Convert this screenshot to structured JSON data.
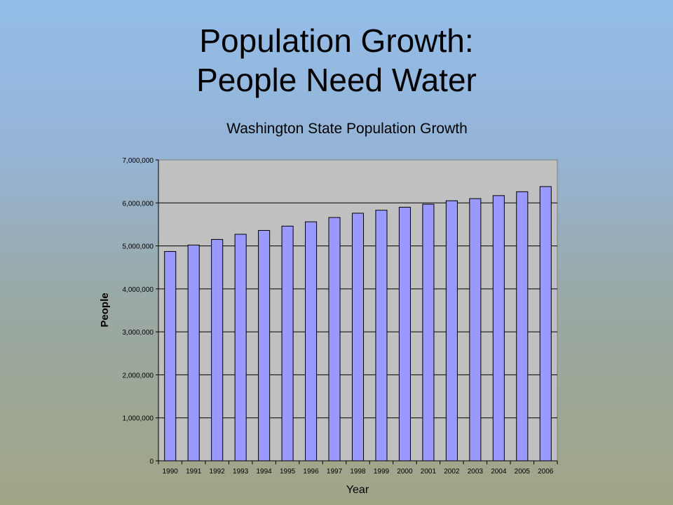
{
  "slide": {
    "title_line1": "Population Growth:",
    "title_line2": "People Need Water"
  },
  "colors": {
    "bar_fill": "#9999ff",
    "plot_background": "#c0c0c0"
  },
  "chart_data": {
    "type": "bar",
    "title": "Washington State Population Growth",
    "xlabel": "Year",
    "ylabel": "People",
    "categories": [
      "1990",
      "1991",
      "1992",
      "1993",
      "1994",
      "1995",
      "1996",
      "1997",
      "1998",
      "1999",
      "2000",
      "2001",
      "2002",
      "2003",
      "2004",
      "2005",
      "2006"
    ],
    "values": [
      4870000,
      5020000,
      5150000,
      5270000,
      5360000,
      5460000,
      5560000,
      5660000,
      5760000,
      5830000,
      5900000,
      5970000,
      6050000,
      6100000,
      6170000,
      6260000,
      6380000
    ],
    "ylim": [
      0,
      7000000
    ],
    "yticks": [
      0,
      1000000,
      2000000,
      3000000,
      4000000,
      5000000,
      6000000,
      7000000
    ],
    "ytick_labels": [
      "0",
      "1,000,000",
      "2,000,000",
      "3,000,000",
      "4,000,000",
      "5,000,000",
      "6,000,000",
      "7,000,000"
    ],
    "grid": true,
    "legend": "none"
  }
}
